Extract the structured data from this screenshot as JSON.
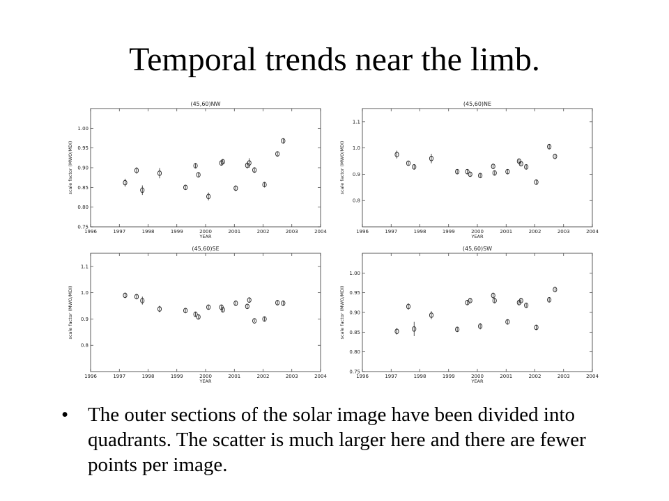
{
  "slide": {
    "title": "Temporal trends near the limb.",
    "bullets": [
      "The outer sections of the solar image have been divided into quadrants.  The scatter is much larger here and there are fewer points per image."
    ],
    "bullet_glyph": "•"
  },
  "chart_data": [
    {
      "type": "scatter",
      "title": "(45,60)NW",
      "xlabel": "YEAR",
      "ylabel": "scale factor (MWO/MDI)",
      "xlim": [
        1996,
        2004
      ],
      "ylim": [
        0.75,
        1.05
      ],
      "xticks": [
        "1996",
        "1997",
        "1998",
        "1999",
        "2000",
        "2001",
        "2002",
        "2003",
        "2004"
      ],
      "yticks": [
        "0.75",
        "0.80",
        "0.85",
        "0.90",
        "0.95",
        "1.00"
      ],
      "x": [
        1997.2,
        1997.6,
        1997.8,
        1998.4,
        1999.3,
        1999.65,
        1999.75,
        2000.1,
        2000.55,
        2000.6,
        2001.05,
        2001.45,
        2001.52,
        2001.7,
        2002.05,
        2002.5,
        2002.7
      ],
      "y": [
        0.862,
        0.893,
        0.843,
        0.886,
        0.85,
        0.905,
        0.882,
        0.827,
        0.912,
        0.915,
        0.848,
        0.906,
        0.912,
        0.894,
        0.857,
        0.935,
        0.968
      ],
      "err": [
        0.01,
        0.008,
        0.012,
        0.013,
        0.006,
        0.007,
        0.006,
        0.01,
        0.006,
        0.006,
        0.007,
        0.008,
        0.012,
        0.007,
        0.007,
        0.006,
        0.007
      ]
    },
    {
      "type": "scatter",
      "title": "(45,60)NE",
      "xlabel": "YEAR",
      "ylabel": "scale factor (MWO/MDI)",
      "xlim": [
        1996,
        2004
      ],
      "ylim": [
        0.7,
        1.15
      ],
      "xticks": [
        "1996",
        "1997",
        "1998",
        "1999",
        "2000",
        "2001",
        "2002",
        "2003",
        "2004"
      ],
      "yticks": [
        "0.8",
        "0.9",
        "1.0",
        "1.1"
      ],
      "x": [
        1997.2,
        1997.6,
        1997.8,
        1998.4,
        1999.3,
        1999.65,
        1999.75,
        2000.1,
        2000.55,
        2000.6,
        2001.05,
        2001.45,
        2001.52,
        2001.7,
        2002.05,
        2002.5,
        2002.7
      ],
      "y": [
        0.975,
        0.942,
        0.928,
        0.96,
        0.91,
        0.91,
        0.9,
        0.895,
        0.93,
        0.905,
        0.91,
        0.95,
        0.94,
        0.928,
        0.87,
        1.005,
        0.968
      ],
      "err": [
        0.015,
        0.008,
        0.01,
        0.018,
        0.008,
        0.008,
        0.008,
        0.008,
        0.008,
        0.008,
        0.008,
        0.01,
        0.008,
        0.008,
        0.008,
        0.01,
        0.01
      ]
    },
    {
      "type": "scatter",
      "title": "(45,60)SE",
      "xlabel": "YEAR",
      "ylabel": "scale factor (MWO/MDI)",
      "xlim": [
        1996,
        2004
      ],
      "ylim": [
        0.7,
        1.15
      ],
      "xticks": [
        "1996",
        "1997",
        "1998",
        "1999",
        "2000",
        "2001",
        "2002",
        "2003",
        "2004"
      ],
      "yticks": [
        "0.8",
        "0.9",
        "1.0",
        "1.1"
      ],
      "x": [
        1997.2,
        1997.6,
        1997.8,
        1998.4,
        1999.3,
        1999.65,
        1999.75,
        2000.1,
        2000.55,
        2000.6,
        2001.05,
        2001.45,
        2001.52,
        2001.7,
        2002.05,
        2002.5,
        2002.7
      ],
      "y": [
        0.99,
        0.985,
        0.97,
        0.938,
        0.932,
        0.918,
        0.908,
        0.945,
        0.945,
        0.935,
        0.96,
        0.948,
        0.972,
        0.893,
        0.9,
        0.962,
        0.96
      ],
      "err": [
        0.01,
        0.01,
        0.015,
        0.012,
        0.008,
        0.008,
        0.008,
        0.008,
        0.008,
        0.008,
        0.008,
        0.01,
        0.01,
        0.006,
        0.008,
        0.008,
        0.008
      ]
    },
    {
      "type": "scatter",
      "title": "(45,60)SW",
      "xlabel": "YEAR",
      "ylabel": "scale factor (MWO/MDI)",
      "xlim": [
        1996,
        2004
      ],
      "ylim": [
        0.75,
        1.05
      ],
      "xticks": [
        "1996",
        "1997",
        "1998",
        "1999",
        "2000",
        "2001",
        "2002",
        "2003",
        "2004"
      ],
      "yticks": [
        "0.75",
        "0.80",
        "0.85",
        "0.90",
        "0.95",
        "1.00"
      ],
      "x": [
        1997.2,
        1997.6,
        1997.8,
        1998.4,
        1999.3,
        1999.65,
        1999.75,
        2000.1,
        2000.55,
        2000.6,
        2001.05,
        2001.45,
        2001.52,
        2001.7,
        2002.05,
        2002.5,
        2002.7
      ],
      "y": [
        0.852,
        0.915,
        0.858,
        0.893,
        0.857,
        0.925,
        0.93,
        0.865,
        0.943,
        0.93,
        0.876,
        0.925,
        0.93,
        0.918,
        0.862,
        0.932,
        0.958
      ],
      "err": [
        0.008,
        0.008,
        0.018,
        0.01,
        0.006,
        0.006,
        0.006,
        0.008,
        0.007,
        0.007,
        0.006,
        0.007,
        0.007,
        0.006,
        0.006,
        0.006,
        0.006
      ]
    }
  ]
}
